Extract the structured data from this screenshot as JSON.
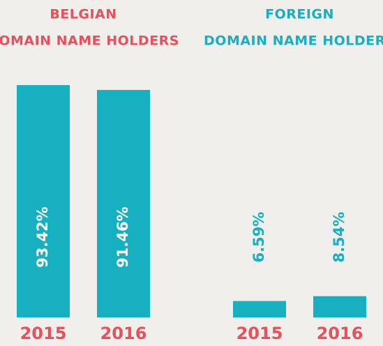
{
  "chart_data": [
    {
      "type": "bar",
      "title": [
        "BELGIAN",
        "DOMAIN NAME HOLDERS"
      ],
      "title_color": "#e8505b",
      "categories": [
        "2015",
        "2016"
      ],
      "values": [
        93.42,
        91.46
      ],
      "value_labels": [
        "93.42%",
        "91.46%"
      ],
      "color": "#16b0c1",
      "category_color": "#e8505b",
      "ylim": [
        0,
        100
      ]
    },
    {
      "type": "bar",
      "title": [
        "FOREIGN",
        "DOMAIN NAME HOLDERS"
      ],
      "title_color": "#16b0c1",
      "categories": [
        "2015",
        "2016"
      ],
      "values": [
        6.59,
        8.54
      ],
      "value_labels": [
        "6.59%",
        "8.54%"
      ],
      "color": "#16b0c1",
      "category_color": "#e8505b",
      "ylim": [
        0,
        100
      ]
    }
  ]
}
